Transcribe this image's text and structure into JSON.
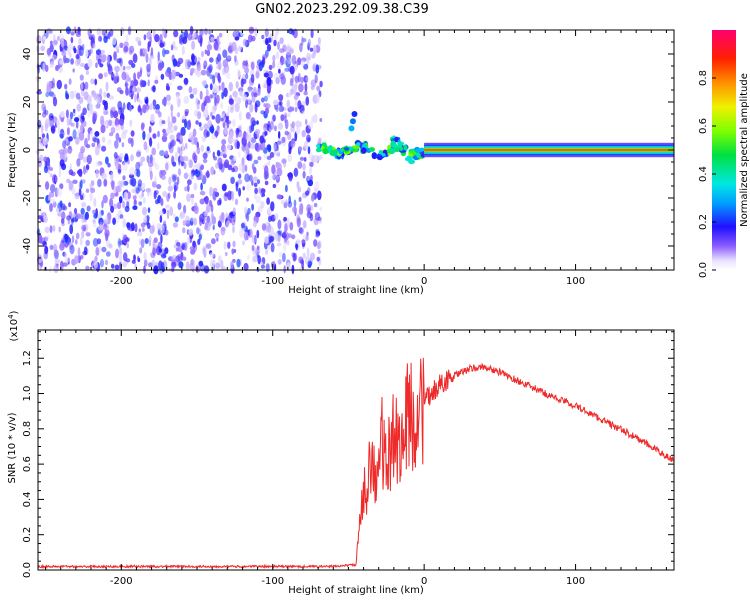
{
  "title": "GN02.2023.292.09.38.C39",
  "chart_data": [
    {
      "type": "heatmap",
      "xlabel": "Height of straight line (km)",
      "ylabel": "Frequency (Hz)",
      "xlim": [
        -255,
        165
      ],
      "ylim": [
        -50,
        50
      ],
      "xticks": [
        -200,
        -100,
        0,
        100
      ],
      "yticks": [
        -40,
        -20,
        0,
        20,
        40
      ],
      "regions": [
        {
          "name": "noise",
          "x": [
            -255,
            -68
          ],
          "y": [
            -50,
            50
          ],
          "amplitude": [
            0.0,
            0.2
          ]
        },
        {
          "name": "transition",
          "x": [
            -70,
            0
          ],
          "y": [
            -8,
            8
          ],
          "amplitude": [
            0.15,
            0.6
          ]
        },
        {
          "name": "tone",
          "x": [
            0,
            165
          ],
          "y": [
            -1,
            1
          ],
          "peak_amplitude": 0.95
        }
      ],
      "colorbar": {
        "label": "Normalized spectral amplitude",
        "range": [
          0.0,
          1.0
        ],
        "ticks": [
          0.0,
          0.2,
          0.4,
          0.6,
          0.8
        ]
      }
    },
    {
      "type": "line",
      "xlabel": "Height of straight line (km)",
      "ylabel": "SNR (10 * v/v)",
      "yexponent": "(x10",
      "yexponent_power": "4",
      "yexponent_close": ")",
      "xlim": [
        -255,
        165
      ],
      "ylim": [
        0,
        1.36
      ],
      "xticks": [
        -200,
        -100,
        0,
        100
      ],
      "yticks": [
        0.0,
        0.2,
        0.4,
        0.6,
        0.8,
        1.0,
        1.2
      ],
      "x": [
        -255,
        -200,
        -150,
        -100,
        -60,
        -45,
        -42,
        -38,
        -35,
        -32,
        -28,
        -25,
        -20,
        -15,
        -10,
        -5,
        0,
        10,
        20,
        30,
        40,
        50,
        60,
        80,
        100,
        120,
        140,
        165
      ],
      "y": [
        0.02,
        0.02,
        0.02,
        0.02,
        0.02,
        0.03,
        0.3,
        0.5,
        0.7,
        0.45,
        0.75,
        0.55,
        0.8,
        0.7,
        0.9,
        0.85,
        0.95,
        1.05,
        1.1,
        1.14,
        1.15,
        1.12,
        1.08,
        1.0,
        0.93,
        0.84,
        0.75,
        0.62
      ]
    }
  ]
}
